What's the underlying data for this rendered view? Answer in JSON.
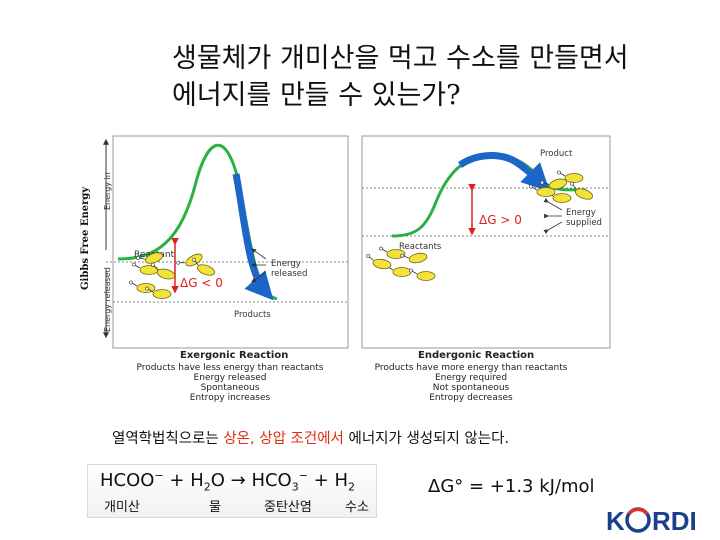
{
  "title": {
    "line1": "생물체가 개미산을 먹고 수소를 만들면서",
    "line2": "에너지를 만들 수 있는가?"
  },
  "side_label": "Gibbs Free Energy",
  "figure": {
    "exergonic": {
      "axis_top": "Energy in",
      "axis_bottom": "Energy released",
      "reactant": "Reactant",
      "energy_released": [
        "Energy",
        "released"
      ],
      "products": "Products",
      "delta_g": "ΔG < 0",
      "title": "Exergonic Reaction",
      "desc": [
        "Products have less energy than reactants",
        "Energy released",
        "Spontaneous",
        "Entropy increases"
      ]
    },
    "endergonic": {
      "product": "Product",
      "energy_supplied": [
        "Energy",
        "supplied"
      ],
      "reactants": "Reactants",
      "delta_g": "ΔG > 0",
      "title": "Endergonic Reaction",
      "desc": [
        "Products have more energy than reactants",
        "Energy required",
        "Not spontaneous",
        "Entropy decreases"
      ]
    },
    "colors": {
      "curve": "#2ab043",
      "arrow": "#1c66c8",
      "delta": "#e02020",
      "molecule": "#f2e23a"
    }
  },
  "caption": {
    "prefix": "열역학법칙으로는 ",
    "highlight": "상온, 상압 조건에서",
    "suffix": " 에너지가 생성되지 않는다."
  },
  "equation": {
    "formate": "HCOO",
    "formate_charge": "−",
    "plus1": " + H",
    "water_sub": "2",
    "water_o": "O ",
    "arrow": "→",
    "bicarb": " HCO",
    "bicarb_sub": "3",
    "bicarb_charge": "−",
    "plus2": " + H",
    "h2_sub": "2",
    "labels": [
      "개미산",
      "물",
      "중탄산염",
      "수소"
    ]
  },
  "delta_g": "ΔG° = +1.3 kJ/mol",
  "logo": {
    "text": "KORDI"
  }
}
